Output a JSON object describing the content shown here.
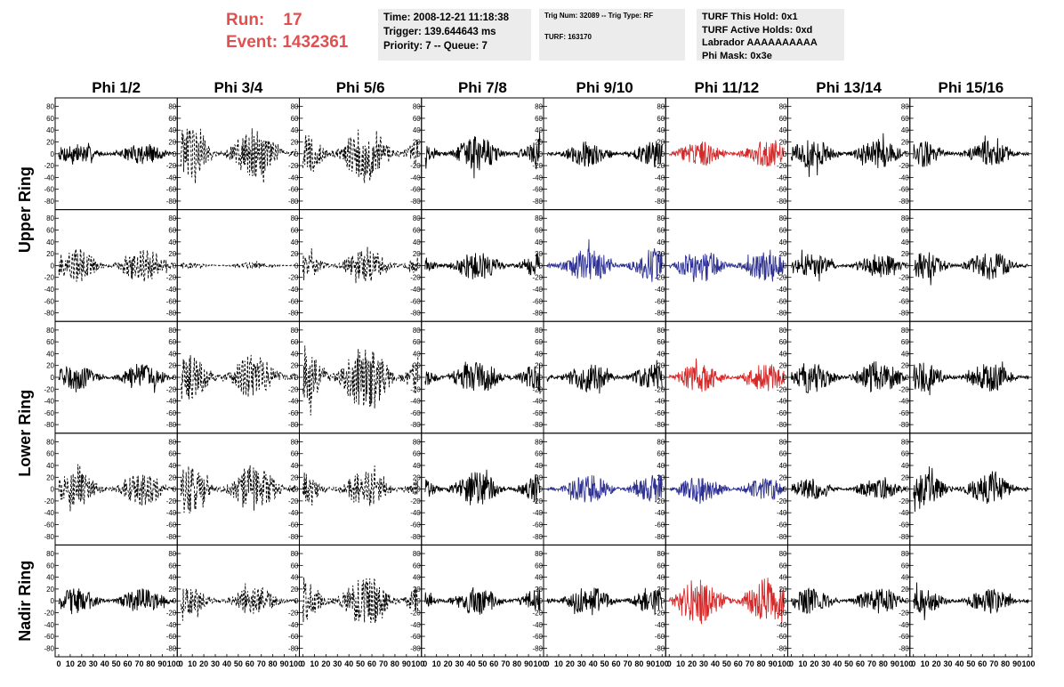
{
  "run": {
    "label": "Run:",
    "value": "17"
  },
  "event": {
    "label": "Event:",
    "value": "1432361"
  },
  "time_info": {
    "time": "Time: 2008-12-21 11:18:38",
    "trigger": "Trigger: 139.644643 ms",
    "priority": "Priority: 7 -- Queue: 7"
  },
  "trig_info": {
    "trig": "Trig Num: 32089 -- Trig Type: RF",
    "turf": "TURF: 163170"
  },
  "turf_info": {
    "this_hold": "TURF This Hold: 0x1",
    "active_holds": "TURF Active Holds: 0xd",
    "labrador": "Labrador AAAAAAAAAA",
    "phi_mask": "Phi Mask: 0x3e"
  },
  "colors": {
    "black": "#000000",
    "red": "#d42a2a",
    "blue": "#2e3192",
    "accent_text": "#e05050",
    "box_bg": "#ececec"
  },
  "chart_data": {
    "type": "line",
    "columns": [
      "Phi 1/2",
      "Phi 3/4",
      "Phi 5/6",
      "Phi 7/8",
      "Phi 9/10",
      "Phi 11/12",
      "Phi 13/14",
      "Phi 15/16"
    ],
    "ring_labels": [
      {
        "label": "Upper Ring",
        "rows": [
          0,
          1
        ]
      },
      {
        "label": "Lower Ring",
        "rows": [
          2,
          3
        ]
      },
      {
        "label": "Nadir Ring",
        "rows": [
          4
        ]
      }
    ],
    "ylim": [
      -90,
      90
    ],
    "yticks": [
      -80,
      -60,
      -40,
      -20,
      0,
      20,
      40,
      60,
      80
    ],
    "xlim": [
      0,
      100
    ],
    "xtick_labels": [
      "0",
      "10",
      "20",
      "30",
      "40",
      "50",
      "60",
      "70",
      "80",
      "90",
      "100"
    ],
    "panels": [
      [
        {
          "style": "solid",
          "color": "black",
          "amp": 18
        },
        {
          "style": "dashed",
          "color": "black",
          "amp": 45
        },
        {
          "style": "dashed",
          "color": "black",
          "amp": 50
        },
        {
          "style": "solid",
          "color": "black",
          "amp": 30
        },
        {
          "style": "solid",
          "color": "black",
          "amp": 22
        },
        {
          "style": "solid",
          "color": "red",
          "amp": 22
        },
        {
          "style": "solid",
          "color": "black",
          "amp": 25
        },
        {
          "style": "solid",
          "color": "black",
          "amp": 22
        }
      ],
      [
        {
          "style": "dashed",
          "color": "black",
          "amp": 30
        },
        {
          "style": "dashed",
          "color": "black",
          "amp": 5
        },
        {
          "style": "dashed",
          "color": "black",
          "amp": 28
        },
        {
          "style": "solid",
          "color": "black",
          "amp": 25
        },
        {
          "style": "solid",
          "color": "blue",
          "amp": 30
        },
        {
          "style": "solid",
          "color": "blue",
          "amp": 30
        },
        {
          "style": "solid",
          "color": "black",
          "amp": 20
        },
        {
          "style": "solid",
          "color": "black",
          "amp": 25
        }
      ],
      [
        {
          "style": "solid",
          "color": "black",
          "amp": 22
        },
        {
          "style": "dashed",
          "color": "black",
          "amp": 40
        },
        {
          "style": "dashed",
          "color": "black",
          "amp": 60
        },
        {
          "style": "solid",
          "color": "black",
          "amp": 30
        },
        {
          "style": "solid",
          "color": "black",
          "amp": 25
        },
        {
          "style": "solid",
          "color": "red",
          "amp": 25
        },
        {
          "style": "solid",
          "color": "black",
          "amp": 28
        },
        {
          "style": "solid",
          "color": "black",
          "amp": 25
        }
      ],
      [
        {
          "style": "dashed",
          "color": "black",
          "amp": 28
        },
        {
          "style": "dashed",
          "color": "black",
          "amp": 42
        },
        {
          "style": "dashed",
          "color": "black",
          "amp": 30
        },
        {
          "style": "solid",
          "color": "black",
          "amp": 30
        },
        {
          "style": "solid",
          "color": "blue",
          "amp": 25
        },
        {
          "style": "solid",
          "color": "blue",
          "amp": 22
        },
        {
          "style": "solid",
          "color": "black",
          "amp": 18
        },
        {
          "style": "solid",
          "color": "black",
          "amp": 28
        }
      ],
      [
        {
          "style": "solid",
          "color": "black",
          "amp": 22
        },
        {
          "style": "dashed",
          "color": "black",
          "amp": 25
        },
        {
          "style": "dashed",
          "color": "black",
          "amp": 45
        },
        {
          "style": "solid",
          "color": "black",
          "amp": 25
        },
        {
          "style": "solid",
          "color": "black",
          "amp": 25
        },
        {
          "style": "solid",
          "color": "red",
          "amp": 40
        },
        {
          "style": "solid",
          "color": "black",
          "amp": 22
        },
        {
          "style": "solid",
          "color": "black",
          "amp": 22
        }
      ]
    ]
  }
}
